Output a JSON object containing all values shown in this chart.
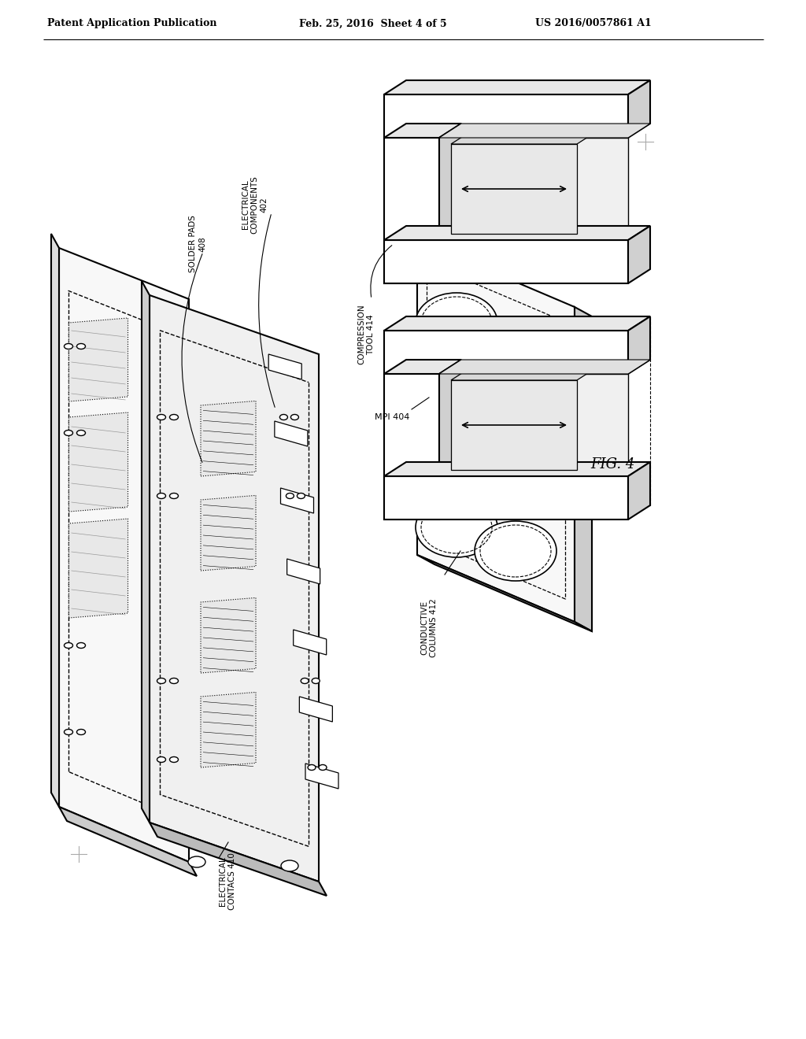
{
  "bg_color": "#ffffff",
  "header_left": "Patent Application Publication",
  "header_mid": "Feb. 25, 2016  Sheet 4 of 5",
  "header_right": "US 2016/0057861 A1",
  "fig_label": "FIG. 4",
  "label_solder_pads": "SOLDER PADS\n408",
  "label_electrical_components": "ELECTRICAL\nCOMPONENTS\n402",
  "label_electrical_contacs": "ELECTRICAL\nCONTACS 410",
  "label_compression_tool": "COMPRESSION\nTOOL 414",
  "label_mpi": "MPI 404",
  "label_conductive_columns": "CONDUCTIVE\nCOLUMNS 412"
}
